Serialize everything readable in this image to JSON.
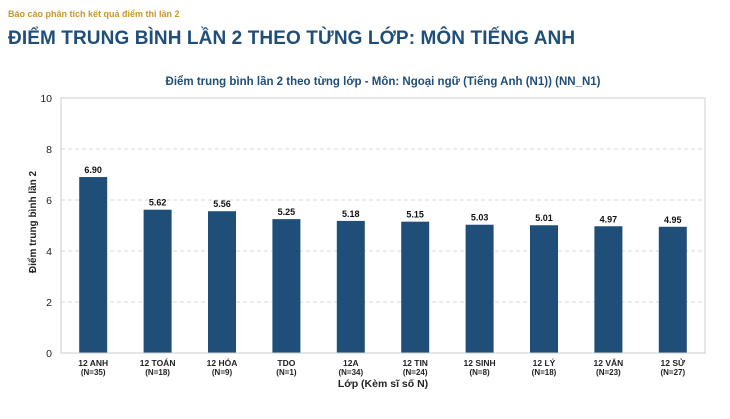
{
  "header": {
    "report_label": "Báo cáo phân tích kết quả điểm thi lần 2",
    "page_title": "ĐIỂM TRUNG BÌNH LẦN 2 THEO TỪNG LỚP: MÔN TIẾNG ANH"
  },
  "colors": {
    "bar": "#1f4e79",
    "title": "#1f4e79",
    "report_label": "#c8962a",
    "grid": "#d9d9d9"
  },
  "chart_data": {
    "type": "bar",
    "title": "Điểm trung bình lần 2 theo từng lớp - Môn: Ngoại ngữ (Tiếng Anh (N1)) (NN_N1)",
    "xlabel": "Lớp (Kèm sĩ số N)",
    "ylabel": "Điểm trung bình lần 2",
    "ylim": [
      0,
      10
    ],
    "yticks": [
      "0",
      "2",
      "4",
      "6",
      "8",
      "10"
    ],
    "grid": true,
    "categories": [
      {
        "name": "12 ANH",
        "n": "(N=35)"
      },
      {
        "name": "12 TOÁN",
        "n": "(N=18)"
      },
      {
        "name": "12 HÓA",
        "n": "(N=9)"
      },
      {
        "name": "TDO",
        "n": "(N=1)"
      },
      {
        "name": "12A",
        "n": "(N=34)"
      },
      {
        "name": "12 TIN",
        "n": "(N=24)"
      },
      {
        "name": "12 SINH",
        "n": "(N=8)"
      },
      {
        "name": "12 LÝ",
        "n": "(N=18)"
      },
      {
        "name": "12 VĂN",
        "n": "(N=23)"
      },
      {
        "name": "12 SỬ",
        "n": "(N=27)"
      }
    ],
    "values": [
      6.9,
      5.62,
      5.56,
      5.25,
      5.18,
      5.15,
      5.03,
      5.01,
      4.97,
      4.95
    ],
    "value_labels": [
      "6.90",
      "5.62",
      "5.56",
      "5.25",
      "5.18",
      "5.15",
      "5.03",
      "5.01",
      "4.97",
      "4.95"
    ]
  }
}
